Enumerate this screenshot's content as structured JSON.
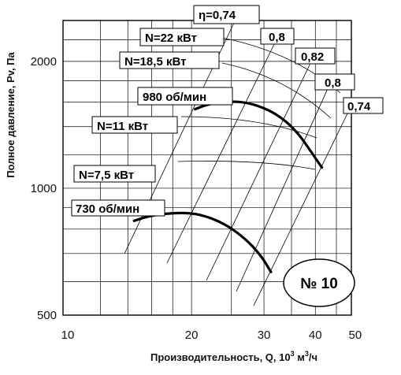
{
  "chart_data": {
    "type": "line",
    "title": "",
    "xlabel": "Производительность, Q, 10",
    "xlabel_exp": "3",
    "xlabel_unit": " м",
    "xlabel_unit_exp": "3",
    "xlabel_tail": "/ч",
    "ylabel": "Полное давление, Pv, Па",
    "x_scale": "log",
    "y_scale": "log",
    "xlim": [
      10,
      50
    ],
    "ylim": [
      500,
      2600
    ],
    "grid": true,
    "x_ticks": [
      {
        "value": 10,
        "label": "10"
      },
      {
        "value": 20,
        "label": "20"
      },
      {
        "value": 30,
        "label": "30"
      },
      {
        "value": 40,
        "label": "40"
      },
      {
        "value": 50,
        "label": "50"
      }
    ],
    "y_ticks": [
      {
        "value": 500,
        "label": "500"
      },
      {
        "value": 1000,
        "label": "1000"
      },
      {
        "value": 2000,
        "label": "2000"
      }
    ],
    "series": [
      {
        "name": "980 об/мин",
        "points": [
          [
            20.4,
            1540
          ],
          [
            22,
            1585
          ],
          [
            25,
            1610
          ],
          [
            28,
            1590
          ],
          [
            32,
            1510
          ],
          [
            36,
            1370
          ],
          [
            40,
            1180
          ],
          [
            41.5,
            1120
          ]
        ]
      },
      {
        "name": "730 об/мин",
        "points": [
          [
            14.5,
            837
          ],
          [
            16,
            863
          ],
          [
            18.7,
            876
          ],
          [
            21,
            868
          ],
          [
            24,
            826
          ],
          [
            27,
            760
          ],
          [
            29.5,
            693
          ],
          [
            31.2,
            633
          ]
        ]
      }
    ],
    "annotations": [
      {
        "text": "980 об/мин"
      },
      {
        "text": "730 об/мин"
      },
      {
        "text": "N=22 кВт"
      },
      {
        "text": "N=18,5 кВт"
      },
      {
        "text": "N=11 кВт"
      },
      {
        "text": "N=7,5 кВт"
      },
      {
        "text": "η=0,74"
      },
      {
        "text": "0,8"
      },
      {
        "text": "0,82"
      },
      {
        "text": "0,8"
      },
      {
        "text": "0,74"
      },
      {
        "text": "№ 10"
      }
    ]
  }
}
